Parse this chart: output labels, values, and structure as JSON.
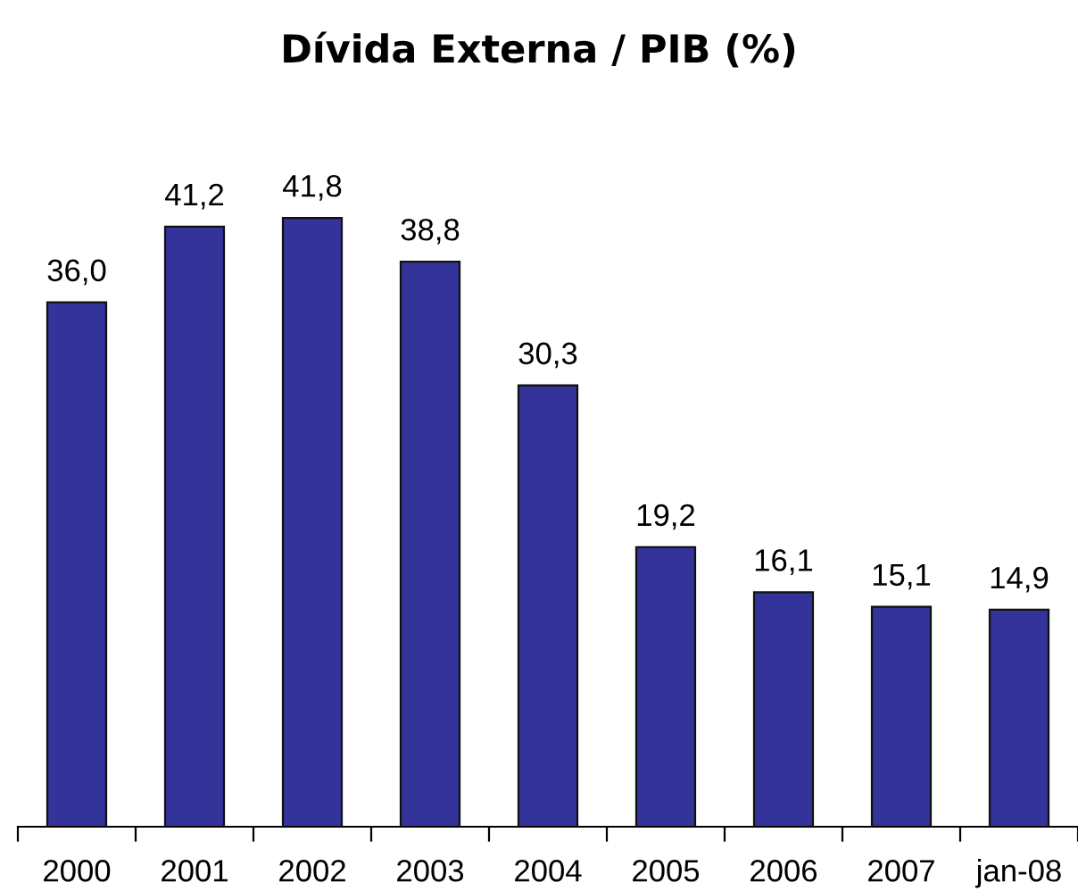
{
  "chart_data": {
    "type": "bar",
    "title": "Dívida Externa / PIB (%)",
    "categories": [
      "2000",
      "2001",
      "2002",
      "2003",
      "2004",
      "2005",
      "2006",
      "2007",
      "jan-08"
    ],
    "values": [
      36.0,
      41.2,
      41.8,
      38.8,
      30.3,
      19.2,
      16.1,
      15.1,
      14.9
    ],
    "value_labels": [
      "36,0",
      "41,2",
      "41,8",
      "38,8",
      "30,3",
      "19,2",
      "16,1",
      "15,1",
      "14,9"
    ],
    "color": "#333399"
  }
}
